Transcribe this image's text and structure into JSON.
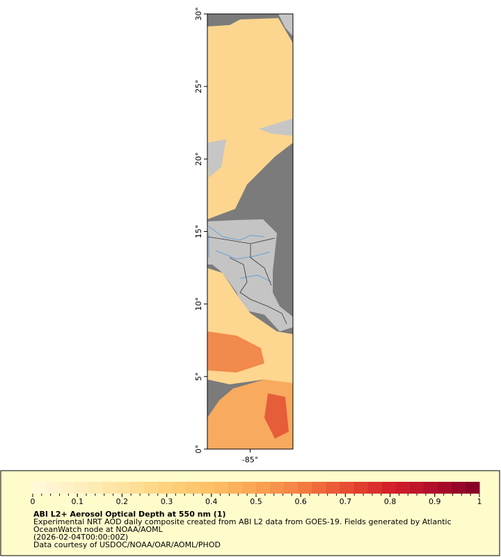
{
  "map": {
    "ylim": [
      0,
      30
    ],
    "yticks": [
      {
        "value": 0,
        "label": "0°"
      },
      {
        "value": 5,
        "label": "5°"
      },
      {
        "value": 10,
        "label": "10°"
      },
      {
        "value": 15,
        "label": "15°"
      },
      {
        "value": 20,
        "label": "20°"
      },
      {
        "value": 25,
        "label": "25°"
      },
      {
        "value": 30,
        "label": "30°"
      }
    ],
    "xlim": [
      -88,
      -82
    ],
    "xticks": [
      {
        "value": -85,
        "label": "-85°"
      }
    ]
  },
  "colorbar": {
    "lim": [
      0,
      1
    ],
    "ticks": [
      0,
      0.1,
      0.2,
      0.3,
      0.4,
      0.5,
      0.6,
      0.7,
      0.8,
      0.9,
      1
    ],
    "colors": [
      "#fff8dc",
      "#feefc0",
      "#fee3a0",
      "#fdd27c",
      "#fcc065",
      "#fba452",
      "#f47f42",
      "#e84e32",
      "#d4202a",
      "#b00d2a",
      "#800026"
    ]
  },
  "caption": {
    "title": "ABI L2+ Aerosol Optical Depth at 550 nm (1)",
    "lines": [
      "Experimental NRT AOD daily composite created from ABI L2 data from GOES-19. Fields generated by Atlantic",
      "OceanWatch node at NOAA/AOML",
      "(2026-02-04T00:00:00Z)",
      "Data courtesy of USDOC/NOAA/OAR/AOML/PHOD"
    ]
  }
}
